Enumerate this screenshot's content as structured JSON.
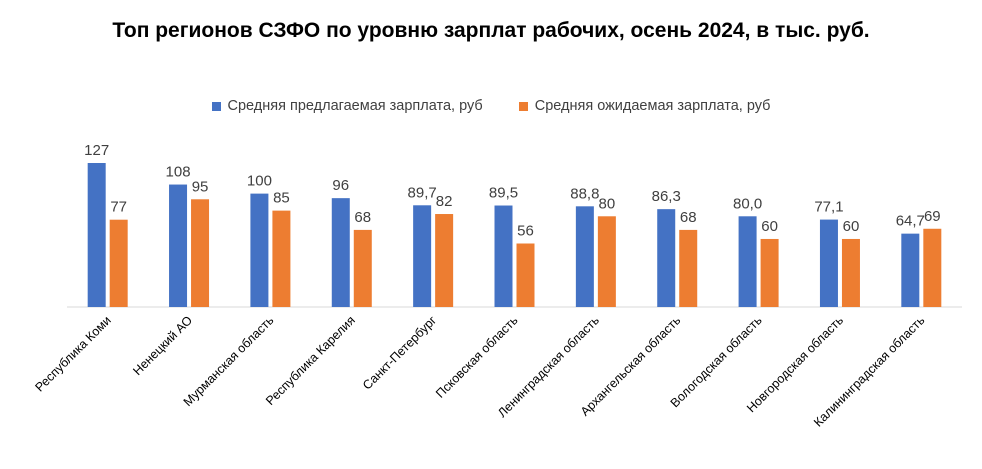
{
  "chart_data": {
    "type": "bar",
    "title": "Топ регионов СЗФО по уровню зарплат рабочих,  осень 2024, в тыс. руб.",
    "categories": [
      "Республика Коми",
      "Ненецкий АО",
      "Мурманская область",
      "Республика Карелия",
      "Санкт-Петербург",
      "Псковская область",
      "Ленинградская область",
      "Архангельская область",
      "Вологодская область",
      "Новгородская область",
      "Калининградская область"
    ],
    "series": [
      {
        "name": "Средняя предлагаемая зарплата, руб",
        "color": "#4472C4",
        "values": [
          127,
          108,
          100,
          96,
          89.7,
          89.5,
          88.8,
          86.3,
          80.0,
          77.1,
          64.7
        ],
        "labels": [
          "127",
          "108",
          "100",
          "96",
          "89,7",
          "89,5",
          "88,8",
          "86,3",
          "80,0",
          "77,1",
          "64,7"
        ]
      },
      {
        "name": "Средняя ожидаемая зарплата, руб",
        "color": "#ED7D31",
        "values": [
          77,
          95,
          85,
          68,
          82,
          56,
          80,
          68,
          60,
          60,
          69
        ],
        "labels": [
          "77",
          "95",
          "85",
          "68",
          "82",
          "56",
          "80",
          "68",
          "60",
          "60",
          "69"
        ]
      }
    ],
    "legend_position": "top",
    "grid": false,
    "ylim": [
      0,
      127
    ]
  }
}
